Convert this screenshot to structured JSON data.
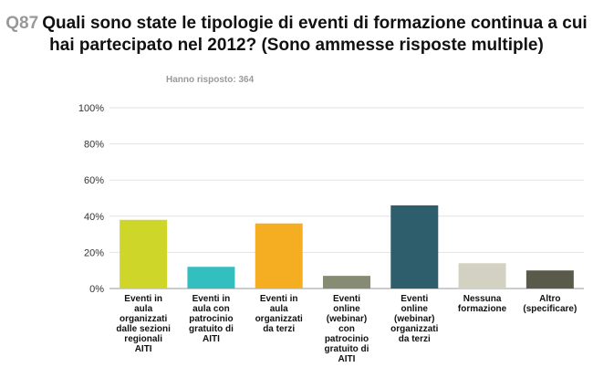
{
  "header": {
    "qnum": "Q87",
    "title": "Quali sono state le tipologie di eventi di formazione continua a cui hai partecipato nel 2012? (Sono ammesse risposte multiple)",
    "answered": "Hanno risposto: 364"
  },
  "chart_data": {
    "type": "bar",
    "categories": [
      "Eventi in aula organizzati dalle sezioni regionali AITI",
      "Eventi in aula con patrocinio gratuito di AITI",
      "Eventi in aula organizzati da terzi",
      "Eventi online (webinar) con patrocinio gratuito di AITI",
      "Eventi online (webinar) organizzati da terzi",
      "Nessuna formazione",
      "Altro (specificare)"
    ],
    "values": [
      38,
      12,
      36,
      7,
      46,
      14,
      10
    ],
    "colors": [
      "#cfd62a",
      "#33bfbf",
      "#f5ae22",
      "#868b73",
      "#2e5e6b",
      "#d3d1c1",
      "#5a5a4a"
    ],
    "ylim": [
      0,
      100
    ],
    "yticks": [
      "0%",
      "20%",
      "40%",
      "60%",
      "80%",
      "100%"
    ],
    "grid": true,
    "xlabel": "",
    "ylabel": ""
  }
}
